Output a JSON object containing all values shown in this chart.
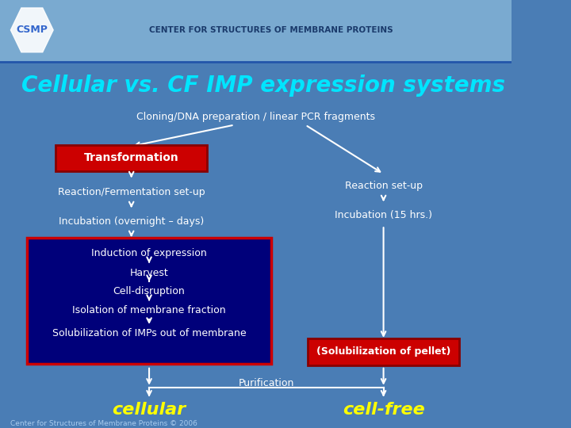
{
  "bg_color": "#4a7db5",
  "header_bg": "#7aaad0",
  "title": "Cellular vs. CF IMP expression systems",
  "title_color": "#00e5ff",
  "title_fontsize": 20,
  "header_text": "CENTER FOR STRUCTURES OF MEMBRANE PROTEINS",
  "header_color": "#1a3a6b",
  "cloning_text": "Cloning/DNA preparation / linear PCR fragments",
  "cloning_color": "white",
  "transformation_text": "Transformation",
  "transformation_color": "white",
  "transformation_bg": "#cc0000",
  "reaction_ferment_text": "Reaction/Fermentation set-up",
  "reaction_ferment_color": "white",
  "incubation_long_text": "Incubation (overnight – days)",
  "incubation_long_color": "white",
  "reaction_setup_text": "Reaction set-up",
  "reaction_setup_color": "white",
  "incubation_15_text": "Incubation (15 hrs.)",
  "incubation_15_color": "white",
  "dark_box_bg": "#00007a",
  "dark_box_border": "#cc0000",
  "induction_text": "Induction of expression",
  "harvest_text": "Harvest",
  "cell_disruption_text": "Cell-disruption",
  "isolation_text": "Isolation of membrane fraction",
  "solubilization_text": "Solubilization of IMPs out of membrane",
  "dark_box_text_color": "white",
  "solub_pellet_text": "(Solubilization of pellet)",
  "solub_pellet_color": "white",
  "solub_pellet_bg": "#cc0000",
  "cellular_text": "cellular",
  "cellular_color": "#ffff00",
  "cellfree_text": "cell-free",
  "cellfree_color": "#ffff00",
  "purification_text": "Purification",
  "purification_color": "white",
  "footer_text": "Center for Structures of Membrane Proteins © 2006",
  "footer_color": "#aaccee",
  "arrow_color": "white"
}
